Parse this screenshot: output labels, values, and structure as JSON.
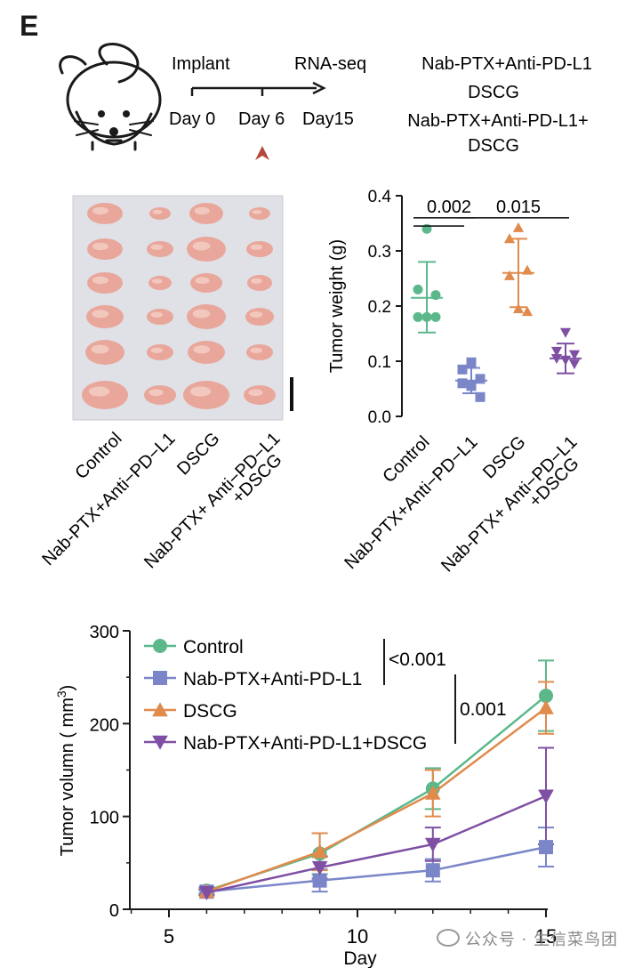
{
  "panel_label": "E",
  "timeline": {
    "implant_label": "Implant",
    "rnaseq_label": "RNA-seq",
    "days": [
      "Day 0",
      "Day 6",
      "Day15"
    ],
    "treatment_lines": [
      "Nab-PTX+Anti-PD-L1",
      "DSCG",
      "Nab-PTX+Anti-PD-L1+",
      "DSCG"
    ]
  },
  "photo": {
    "column_labels": [
      [
        "Control"
      ],
      [
        "Nab-PTX+Anti−PD−L1"
      ],
      [
        "DSCG"
      ],
      [
        "Nab-PTX+ Anti−PD−L1",
        "+DSCG"
      ]
    ]
  },
  "colors": {
    "control": "#5cb88b",
    "nab": "#7a86c8",
    "dscg": "#e08a4c",
    "combo": "#7e4fa3",
    "arrow": "#b5463c"
  },
  "chart_data": [
    {
      "type": "scatter",
      "title": "",
      "ylabel": "Tumor weight (g)",
      "ylim": [
        0,
        0.4
      ],
      "yticks": [
        "0.0",
        "0.1",
        "0.2",
        "0.3",
        "0.4"
      ],
      "categories": [
        [
          "Control"
        ],
        [
          "Nab-PTX+Anti−PD−L1"
        ],
        [
          "DSCG"
        ],
        [
          "Nab-PTX+ Anti−PD−L1",
          "+DSCG"
        ]
      ],
      "groups": [
        {
          "name": "Control",
          "marker": "circle",
          "points": [
            0.34,
            0.23,
            0.22,
            0.18,
            0.18,
            0.18
          ],
          "mean": 0.215,
          "sd_low": 0.152,
          "sd_high": 0.28
        },
        {
          "name": "Nab-PTX+Anti-PD-L1",
          "marker": "square",
          "points": [
            0.098,
            0.085,
            0.068,
            0.06,
            0.055,
            0.035
          ],
          "mean": 0.065,
          "sd_low": 0.042,
          "sd_high": 0.088
        },
        {
          "name": "DSCG",
          "marker": "triangle-up",
          "points": [
            0.342,
            0.322,
            0.265,
            0.255,
            0.195,
            0.19
          ],
          "mean": 0.26,
          "sd_low": 0.198,
          "sd_high": 0.322
        },
        {
          "name": "Nab-PTX+Anti-PD-L1+DSCG",
          "marker": "triangle-down",
          "points": [
            0.152,
            0.118,
            0.112,
            0.105,
            0.102,
            0.095
          ],
          "mean": 0.105,
          "sd_low": 0.078,
          "sd_high": 0.132
        }
      ],
      "comparisons": [
        {
          "from": 0,
          "to": 1,
          "label": "0.002",
          "y": 0.36
        },
        {
          "from": 1,
          "to": 3,
          "label": "0.015",
          "y": 0.36
        }
      ]
    },
    {
      "type": "line",
      "title": "",
      "xlabel": "Day",
      "ylabel": "Tumor volumn ( mm",
      "ylabel_sup": "3",
      "ylabel_end": ")",
      "xlim": [
        3.5,
        15
      ],
      "ylim": [
        0,
        300
      ],
      "xticks": [
        "5",
        "10",
        "15"
      ],
      "yticks": [
        "0",
        "100",
        "200",
        "300"
      ],
      "x": [
        6,
        9,
        12,
        15
      ],
      "series": [
        {
          "name": "Control",
          "marker": "circle",
          "values": [
            20,
            60,
            130,
            230
          ],
          "err": [
            3,
            22,
            22,
            38
          ]
        },
        {
          "name": "Nab-PTX+Anti-PD-L1",
          "marker": "square",
          "values": [
            19,
            31,
            42,
            67
          ],
          "err": [
            3,
            12,
            12,
            21
          ]
        },
        {
          "name": "DSCG",
          "marker": "triangle-up",
          "values": [
            19,
            62,
            125,
            217
          ],
          "err": [
            3,
            20,
            25,
            28
          ]
        },
        {
          "name": "Nab-PTX+Anti-PD-L1+DSCG",
          "marker": "triangle-down",
          "values": [
            18,
            45,
            70,
            122
          ],
          "err": [
            3,
            12,
            18,
            52
          ]
        }
      ],
      "legend": "top-left",
      "pvalues": [
        "<0.001",
        "0.001"
      ]
    }
  ],
  "watermark": "公众号 · 生信菜鸟团"
}
